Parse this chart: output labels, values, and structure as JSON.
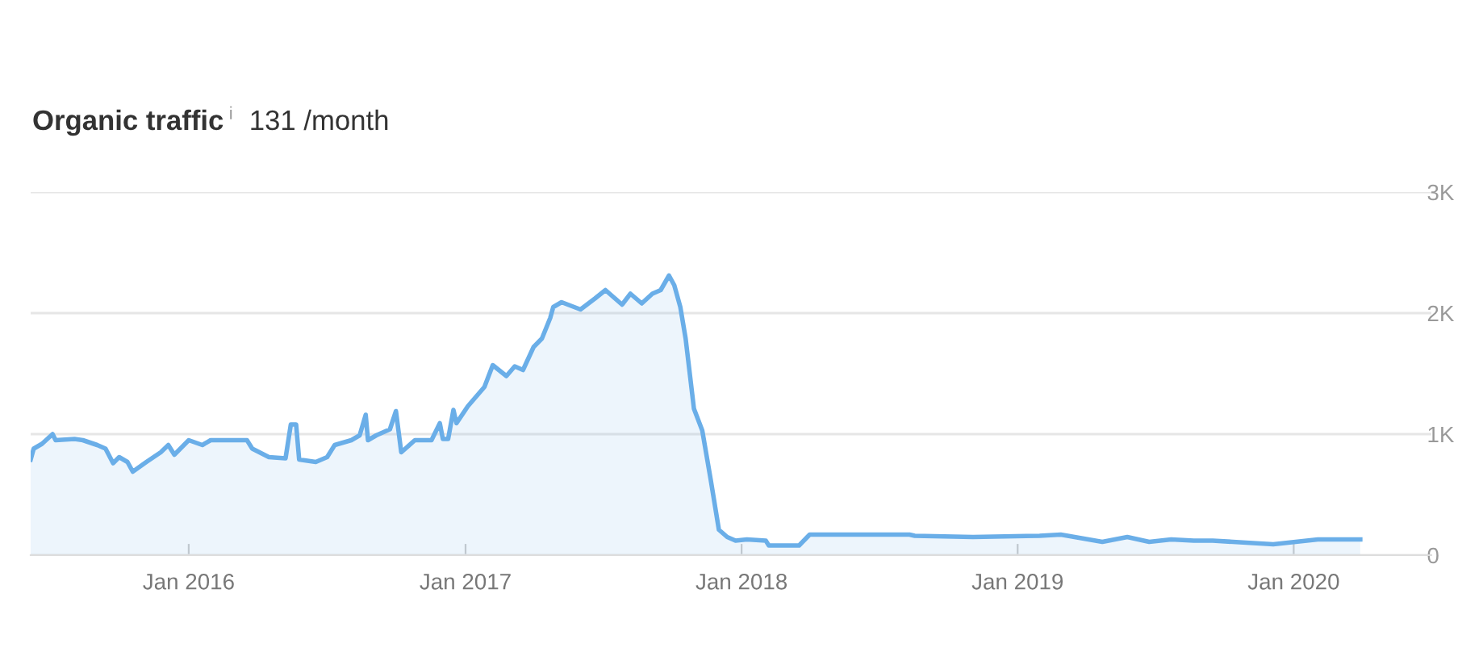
{
  "chart_data": {
    "type": "area",
    "title": "Organic traffic",
    "subtitle": "131 /month",
    "annotations": [
      "i"
    ],
    "x": [
      "2015-06-06",
      "2015-06-10",
      "2015-06-21",
      "2015-07-05",
      "2015-07-09",
      "2015-08-03",
      "2015-08-14",
      "2015-09-02",
      "2015-09-13",
      "2015-09-23",
      "2015-10-01",
      "2015-10-12",
      "2015-10-19",
      "2015-11-06",
      "2015-11-25",
      "2015-12-05",
      "2015-12-13",
      "2016-01-01",
      "2016-01-19",
      "2016-01-30",
      "2016-03-18",
      "2016-03-25",
      "2016-04-16",
      "2016-05-08",
      "2016-05-15",
      "2016-05-22",
      "2016-05-26",
      "2016-06-17",
      "2016-07-02",
      "2016-07-12",
      "2016-08-03",
      "2016-08-14",
      "2016-08-22",
      "2016-08-25",
      "2016-09-05",
      "2016-09-23",
      "2016-10-01",
      "2016-10-08",
      "2016-10-26",
      "2016-11-17",
      "2016-11-28",
      "2016-12-02",
      "2016-12-09",
      "2016-12-16",
      "2016-12-20",
      "2017-01-04",
      "2017-01-26",
      "2017-02-06",
      "2017-02-24",
      "2017-03-07",
      "2017-03-18",
      "2017-04-01",
      "2017-04-12",
      "2017-04-23",
      "2017-04-27",
      "2017-05-08",
      "2017-06-02",
      "2017-06-21",
      "2017-07-05",
      "2017-07-27",
      "2017-08-07",
      "2017-08-22",
      "2017-09-05",
      "2017-09-16",
      "2017-09-27",
      "2017-10-04",
      "2017-10-12",
      "2017-10-19",
      "2017-10-30",
      "2017-11-10",
      "2017-11-21",
      "2017-12-02",
      "2017-12-13",
      "2017-12-24",
      "2018-01-08",
      "2018-02-02",
      "2018-02-06",
      "2018-03-18",
      "2018-04-01",
      "2018-08-11",
      "2018-08-18",
      "2018-11-03",
      "2019-01-30",
      "2019-02-27",
      "2019-04-23",
      "2019-05-26",
      "2019-06-24",
      "2019-07-23",
      "2019-08-22",
      "2019-09-16",
      "2019-12-05",
      "2020-02-02",
      "2020-03-29"
    ],
    "series": [
      {
        "color": "#6aaee8",
        "values": [
          790,
          880,
          920,
          1000,
          950,
          960,
          950,
          910,
          880,
          760,
          810,
          770,
          690,
          770,
          850,
          910,
          830,
          950,
          910,
          950,
          950,
          880,
          810,
          800,
          1080,
          1080,
          790,
          770,
          810,
          910,
          950,
          990,
          1160,
          950,
          990,
          1040,
          1190,
          850,
          950,
          950,
          1090,
          960,
          960,
          1200,
          1090,
          1230,
          1390,
          1570,
          1480,
          1560,
          1530,
          1720,
          1790,
          1960,
          2050,
          2090,
          2030,
          2120,
          2190,
          2070,
          2160,
          2080,
          2160,
          2190,
          2310,
          2230,
          2050,
          1790,
          1210,
          1030,
          630,
          210,
          150,
          120,
          130,
          120,
          80,
          80,
          170,
          170,
          160,
          150,
          160,
          170,
          110,
          150,
          110,
          130,
          120,
          120,
          90,
          130,
          130
        ]
      }
    ],
    "xlim": [
      "2015-06-06",
      "2020-07-01"
    ],
    "xticks": [
      {
        "value": "2016-01-01",
        "label": "Jan 2016"
      },
      {
        "value": "2017-01-01",
        "label": "Jan 2017"
      },
      {
        "value": "2018-01-01",
        "label": "Jan 2018"
      },
      {
        "value": "2019-01-01",
        "label": "Jan 2019"
      },
      {
        "value": "2020-01-01",
        "label": "Jan 2020"
      }
    ],
    "ylim": [
      0,
      3000
    ],
    "yticks": [
      {
        "value": 0,
        "label": "0"
      },
      {
        "value": 1000,
        "label": "1K"
      },
      {
        "value": 2000,
        "label": "2K"
      },
      {
        "value": 3000,
        "label": "3K"
      }
    ],
    "grid": "y",
    "legend": false
  }
}
